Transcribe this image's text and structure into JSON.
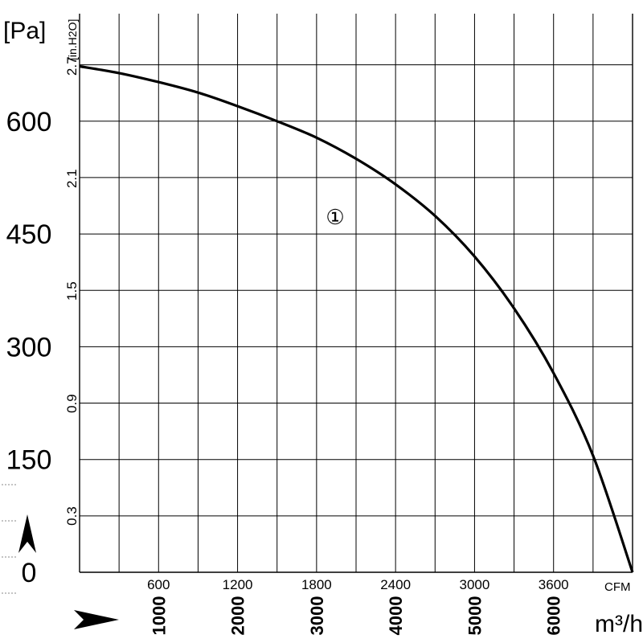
{
  "chart_data": {
    "type": "line",
    "title": "",
    "grid": true,
    "units": {
      "pressure_pa": "[Pa]",
      "pressure_inh2o": "[in.H2O]",
      "flow_cfm": "CFM",
      "flow_m3h": "m³/h"
    },
    "y_pa": {
      "ticks": [
        "0",
        "150",
        "300",
        "450",
        "600"
      ],
      "ylim": [
        0,
        743
      ]
    },
    "y_inh2o": {
      "ticks": [
        "0.3",
        "0.9",
        "1.5",
        "2.1",
        "2.7"
      ],
      "ylim": [
        0,
        2.98
      ]
    },
    "x_cfm": {
      "ticks": [
        "600",
        "1200",
        "1800",
        "2400",
        "3000",
        "3600"
      ],
      "xlim": [
        0,
        4200
      ]
    },
    "x_m3h": {
      "ticks": [
        "1000",
        "2000",
        "3000",
        "4000",
        "5000",
        "6000"
      ],
      "xlim": [
        0,
        7000
      ]
    },
    "series": [
      {
        "name": "①",
        "x_m3h": [
          0,
          500,
          1000,
          1500,
          2000,
          2500,
          3000,
          3500,
          4000,
          4500,
          5000,
          5500,
          6000,
          6500,
          7000
        ],
        "y_pa": [
          673,
          664,
          652,
          638,
          620,
          600,
          578,
          550,
          516,
          474,
          420,
          351,
          265,
          155,
          0
        ]
      }
    ]
  }
}
